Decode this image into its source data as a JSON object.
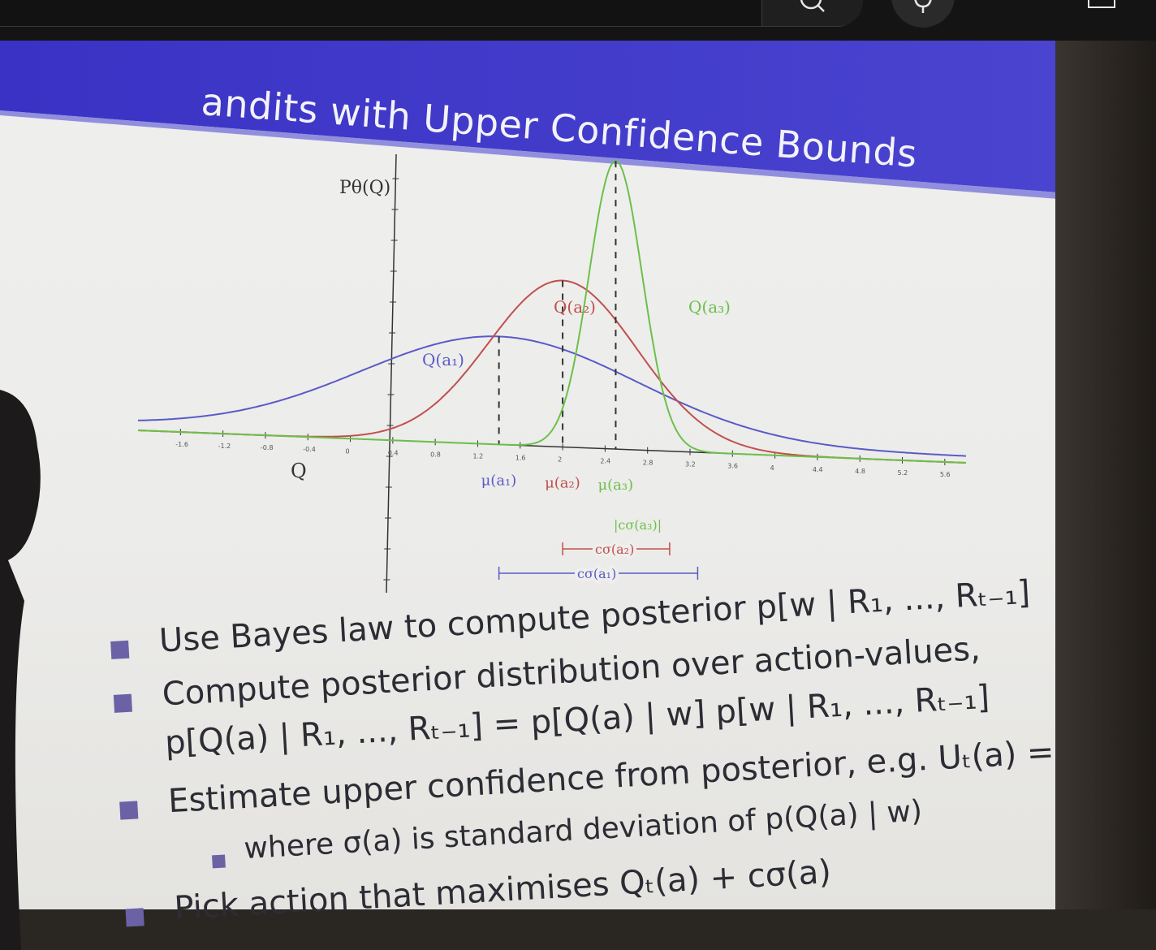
{
  "slide": {
    "title": "Bandits with Upper Confidence Bounds",
    "title_visible": "andits with Upper Confidence Bounds",
    "banner_color": "#3f37c0",
    "bullet_color": "#6b62a6",
    "bullets": [
      "Use Bayes law to compute posterior p[w | R₁, ..., Rₜ₋₁]",
      "Compute posterior distribution over action-values,",
      "p[Q(a) | R₁, ..., Rₜ₋₁] = p[Q(a) | w] p[w | R₁, ..., Rₜ₋₁]",
      "Estimate upper confidence from posterior, e.g. Uₜ(a) = cσ(a)",
      "where σ(a) is standard deviation of p(Q(a) | w)",
      "Pick action that maximises Qₜ(a) + cσ(a)"
    ]
  },
  "chart_data": {
    "type": "line",
    "ylabel": "Pθ(Q)",
    "xlabel": "Q",
    "x_ticks": [
      "-1.6",
      "-1.2",
      "-0.8",
      "-0.4",
      "0",
      "0.4",
      "0.8",
      "1.2",
      "1.6",
      "2",
      "2.4",
      "2.8",
      "3.2",
      "3.6",
      "4",
      "4.4",
      "4.8",
      "5.2",
      "5.6"
    ],
    "xlim": [
      -2,
      5.8
    ],
    "series": [
      {
        "name": "Q(a₁)",
        "mu": 1.4,
        "sigma": 1.3,
        "color": "#5a5ac8",
        "mu_label": "μ(a₁)",
        "bound_label": "cσ(a₁)"
      },
      {
        "name": "Q(a₂)",
        "mu": 2.0,
        "sigma": 0.7,
        "color": "#c0504d",
        "mu_label": "μ(a₂)",
        "bound_label": "cσ(a₂)"
      },
      {
        "name": "Q(a₃)",
        "mu": 2.5,
        "sigma": 0.25,
        "color": "#6cc04a",
        "mu_label": "μ(a₃)",
        "bound_label": "|cσ(a₃)|"
      }
    ]
  },
  "topbar": {
    "search_icon": "search-icon",
    "mic_icon": "microphone-icon",
    "create_icon": "create-icon"
  }
}
